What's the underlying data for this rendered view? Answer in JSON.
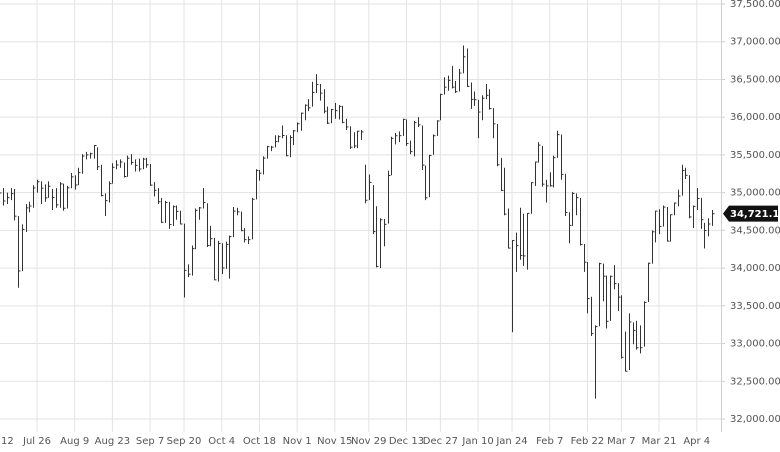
{
  "chart_data": {
    "type": "ohlc",
    "categories": [
      "12",
      null,
      null,
      null,
      null,
      null,
      null,
      null,
      null,
      null,
      "Jul 26",
      null,
      null,
      null,
      null,
      null,
      null,
      null,
      null,
      null,
      "Aug 9",
      null,
      null,
      null,
      null,
      null,
      null,
      null,
      null,
      null,
      "Aug 23",
      null,
      null,
      null,
      null,
      null,
      null,
      null,
      null,
      null,
      "Sep 7",
      null,
      null,
      null,
      null,
      null,
      null,
      null,
      null,
      "Sep 20",
      null,
      null,
      null,
      null,
      null,
      null,
      null,
      null,
      null,
      "Oct 4",
      null,
      null,
      null,
      null,
      null,
      null,
      null,
      null,
      null,
      "Oct 18",
      null,
      null,
      null,
      null,
      null,
      null,
      null,
      null,
      null,
      "Nov 1",
      null,
      null,
      null,
      null,
      null,
      null,
      null,
      null,
      null,
      "Nov 15",
      null,
      null,
      null,
      null,
      null,
      null,
      null,
      null,
      "Nov 29",
      null,
      null,
      null,
      null,
      null,
      null,
      null,
      null,
      null,
      "Dec 13",
      null,
      null,
      null,
      null,
      null,
      null,
      null,
      null,
      "Dec 27",
      null,
      null,
      null,
      null,
      null,
      null,
      null,
      null,
      null,
      "Jan 10",
      null,
      null,
      null,
      null,
      null,
      null,
      null,
      null,
      "Jan 24",
      null,
      null,
      null,
      null,
      null,
      null,
      null,
      null,
      null,
      "Feb 7",
      null,
      null,
      null,
      null,
      null,
      null,
      null,
      null,
      null,
      "Feb 22",
      null,
      null,
      null,
      null,
      null,
      null,
      null,
      null,
      "Mar 7",
      null,
      null,
      null,
      null,
      null,
      null,
      null,
      null,
      null,
      "Mar 21",
      null,
      null,
      null,
      null,
      null,
      null,
      null,
      null,
      null,
      "Apr 4",
      null,
      null,
      null,
      null
    ],
    "high": [
      35090,
      35060,
      35000,
      35060,
      35050,
      34690,
      34580,
      34850,
      34880,
      35100,
      35170,
      35150,
      35110,
      35150,
      35050,
      35060,
      35140,
      35120,
      35090,
      35260,
      35230,
      35330,
      35510,
      35540,
      35530,
      35630,
      35600,
      35370,
      34990,
      35150,
      35390,
      35430,
      35440,
      35400,
      35490,
      35510,
      35440,
      35450,
      35460,
      35460,
      35380,
      35140,
      35060,
      34930,
      34890,
      34880,
      34830,
      34830,
      34760,
      34590,
      34050,
      34300,
      34790,
      34810,
      35060,
      34860,
      34560,
      34400,
      34360,
      34330,
      34350,
      34430,
      34810,
      34800,
      34750,
      34530,
      34420,
      34930,
      35310,
      35300,
      35480,
      35620,
      35620,
      35760,
      35760,
      35890,
      35760,
      35760,
      35830,
      35930,
      36060,
      36170,
      36240,
      36470,
      36570,
      36440,
      36370,
      36140,
      36110,
      36190,
      36160,
      36150,
      35980,
      35880,
      35800,
      35820,
      35830,
      35370,
      35240,
      35100,
      34820,
      34660,
      34650,
      35290,
      35740,
      35790,
      35810,
      35980,
      35970,
      35690,
      35950,
      36000,
      35890,
      35360,
      35500,
      35770,
      35960,
      36310,
      36530,
      36550,
      36680,
      36480,
      36640,
      36950,
      36910,
      36460,
      36340,
      36230,
      36290,
      36440,
      36370,
      36120,
      35910,
      35460,
      35330,
      34790,
      34370,
      34470,
      34800,
      34720,
      34730,
      35140,
      35410,
      35670,
      35620,
      35170,
      35270,
      35490,
      35820,
      35770,
      35250,
      34740,
      35010,
      34990,
      34930,
      34320,
      34080,
      33620,
      33240,
      34070,
      34060,
      33900,
      33900,
      34040,
      33800,
      33640,
      33160,
      33400,
      33280,
      33300,
      33240,
      33560,
      34070,
      34500,
      34760,
      34780,
      34830,
      34810,
      34710,
      34870,
      35040,
      35370,
      35330,
      35230,
      34830,
      35060,
      34930,
      34600,
      34660,
      34770
    ],
    "low": [
      34900,
      34830,
      34850,
      34900,
      34630,
      33740,
      33960,
      34480,
      34740,
      34800,
      35000,
      34850,
      34880,
      34930,
      34770,
      34800,
      34800,
      34760,
      34790,
      35060,
      35040,
      35100,
      35250,
      35440,
      35450,
      35450,
      35300,
      34950,
      34690,
      34870,
      35120,
      35310,
      35330,
      35200,
      35210,
      35370,
      35280,
      35280,
      35310,
      35330,
      35090,
      34950,
      34850,
      34600,
      34600,
      34520,
      34560,
      34640,
      34580,
      33610,
      33880,
      33900,
      34250,
      34640,
      34790,
      34280,
      34290,
      33840,
      33820,
      33920,
      33990,
      33860,
      34410,
      34700,
      34490,
      34340,
      34320,
      34380,
      34910,
      35160,
      35240,
      35450,
      35550,
      35600,
      35670,
      35720,
      35480,
      35470,
      35630,
      35800,
      35820,
      35960,
      36080,
      36140,
      36320,
      36220,
      36050,
      35910,
      35920,
      35980,
      35970,
      35920,
      35830,
      35580,
      35590,
      35590,
      35700,
      34860,
      34900,
      34450,
      34010,
      34000,
      34290,
      34590,
      35230,
      35640,
      35670,
      35750,
      35620,
      35510,
      35480,
      35870,
      35300,
      34900,
      34940,
      35500,
      35750,
      35960,
      36300,
      36350,
      36380,
      36320,
      36340,
      36580,
      36400,
      36110,
      36150,
      35720,
      35960,
      36240,
      36100,
      35720,
      35350,
      35020,
      34700,
      34260,
      33150,
      33950,
      34110,
      34030,
      33980,
      34720,
      35090,
      35400,
      35080,
      34870,
      35080,
      35070,
      35460,
      35170,
      34690,
      34330,
      34560,
      34700,
      34300,
      33950,
      33400,
      33100,
      32270,
      33230,
      33560,
      33200,
      33300,
      33720,
      33430,
      32800,
      32630,
      32650,
      32990,
      32920,
      32870,
      32960,
      33550,
      34060,
      34340,
      34450,
      34550,
      34350,
      34350,
      34700,
      34820,
      34960,
      35180,
      34660,
      34530,
      34770,
      34520,
      34260,
      34420,
      34560
    ],
    "close": [
      34996,
      34889,
      34934,
      34987,
      34688,
      33962,
      34512,
      34798,
      34823,
      35062,
      35144,
      35059,
      34931,
      35085,
      34935,
      34838,
      35116,
      34793,
      35064,
      35209,
      35102,
      35265,
      35485,
      35500,
      35516,
      35625,
      35343,
      34961,
      34894,
      35120,
      35336,
      35367,
      35406,
      35214,
      35456,
      35400,
      35361,
      35313,
      35444,
      35369,
      35100,
      35031,
      34879,
      34608,
      34870,
      34578,
      34814,
      34751,
      34584,
      33970,
      33919,
      34258,
      34765,
      34798,
      34869,
      34299,
      34390,
      33844,
      34326,
      34002,
      34314,
      34417,
      34755,
      34746,
      34496,
      34378,
      34377,
      34912,
      35295,
      35258,
      35457,
      35609,
      35603,
      35677,
      35741,
      35757,
      35490,
      35730,
      35820,
      35913,
      36053,
      36158,
      36124,
      36328,
      36432,
      36319,
      36080,
      35921,
      36100,
      36087,
      36143,
      35931,
      35871,
      35602,
      35619,
      35814,
      35804,
      34899,
      35136,
      34484,
      34022,
      34640,
      34580,
      35227,
      35720,
      35754,
      35755,
      35971,
      35650,
      35544,
      35927,
      35898,
      35365,
      34932,
      35493,
      35754,
      35950,
      36302,
      36398,
      36488,
      36398,
      36338,
      36585,
      36800,
      36408,
      36236,
      36232,
      36068,
      36252,
      36290,
      36114,
      35912,
      35369,
      35029,
      34715,
      34265,
      34365,
      34298,
      34168,
      34161,
      34725,
      35132,
      35405,
      35630,
      35112,
      35089,
      35091,
      35463,
      35768,
      35242,
      34738,
      34566,
      34989,
      34934,
      34312,
      34079,
      33597,
      33132,
      33224,
      34059,
      33893,
      33295,
      33891,
      33795,
      33615,
      32818,
      32633,
      33286,
      33174,
      32944,
      32945,
      33545,
      34064,
      34481,
      34755,
      34553,
      34808,
      34358,
      34708,
      34862,
      34955,
      35294,
      35229,
      34678,
      34818,
      34922,
      34642,
      34497,
      34584,
      34721.12
    ],
    "last_close_label": "34,721.12",
    "ylim": [
      32000,
      37500
    ],
    "yticks": [
      {
        "value": 32000,
        "label": "32,000.00"
      },
      {
        "value": 32500,
        "label": "32,500.00"
      },
      {
        "value": 33000,
        "label": "33,000.00"
      },
      {
        "value": 33500,
        "label": "33,500.00"
      },
      {
        "value": 34000,
        "label": "34,000.00"
      },
      {
        "value": 34500,
        "label": "34,500.00"
      },
      {
        "value": 35000,
        "label": "35,000.00"
      },
      {
        "value": 35500,
        "label": "35,500.00"
      },
      {
        "value": 36000,
        "label": "36,000.00"
      },
      {
        "value": 36500,
        "label": "36,500.00"
      },
      {
        "value": 37000,
        "label": "37,000.00"
      },
      {
        "value": 37500,
        "label": "37,500.00"
      }
    ],
    "grid": true,
    "color": "#333333"
  }
}
